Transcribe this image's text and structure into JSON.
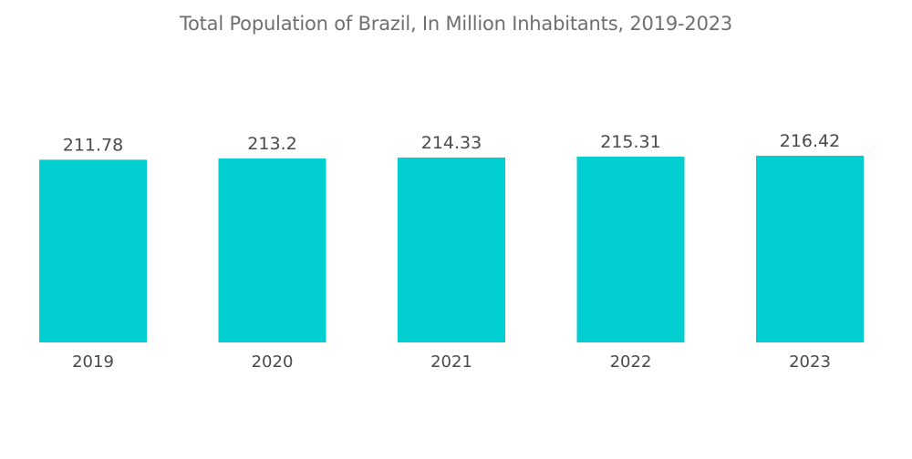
{
  "chart_data": {
    "type": "bar",
    "title": "Total Population of Brazil, In Million Inhabitants, 2019-2023",
    "categories": [
      "2019",
      "2020",
      "2021",
      "2022",
      "2023"
    ],
    "series": [
      {
        "values": [
          211.78,
          213.2,
          214.33,
          215.31,
          216.42
        ],
        "labels": [
          "211.78",
          "213.2",
          "214.33",
          "215.31",
          "216.42"
        ],
        "color": "#00ced1"
      }
    ],
    "ylim": [
      0,
      216.42
    ],
    "grid": false,
    "legend": "none",
    "axis_line_color": "#e0e0e0"
  }
}
